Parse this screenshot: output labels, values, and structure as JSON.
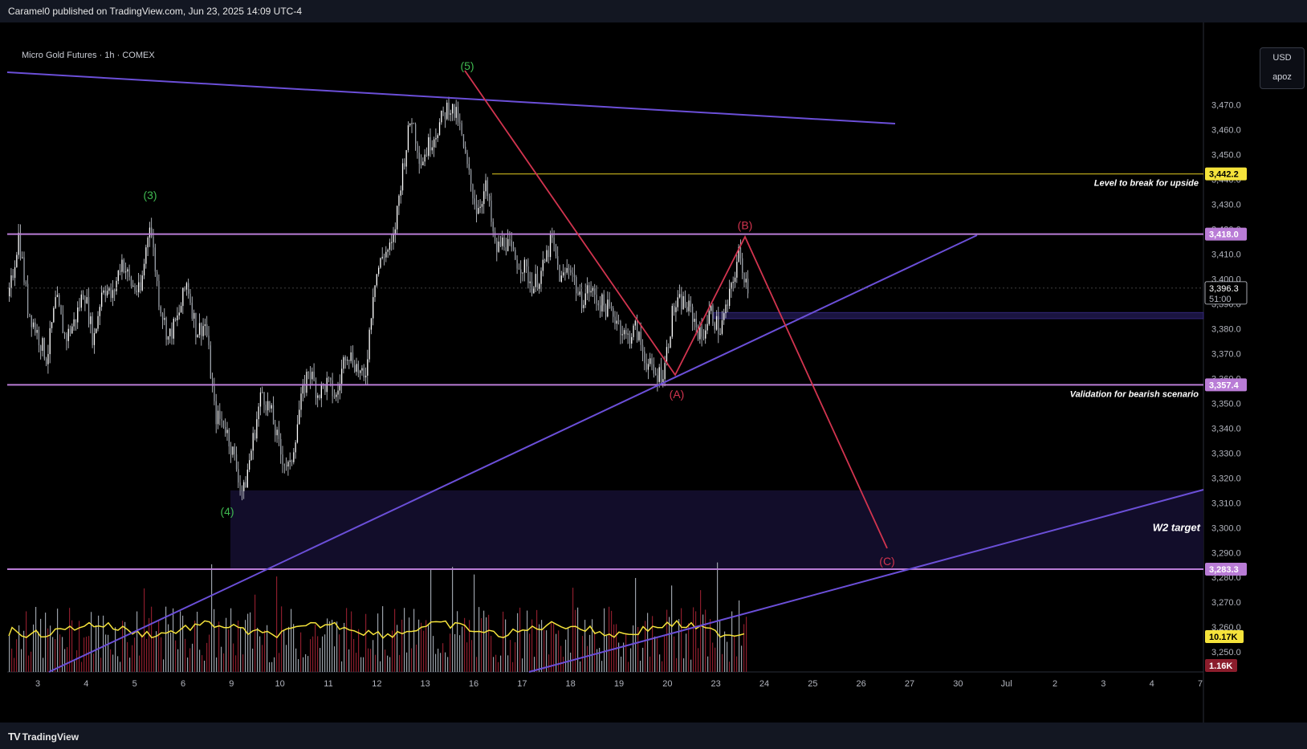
{
  "header": {
    "published": "Caramel0 published on TradingView.com, Jun 23, 2025 14:09 UTC-4"
  },
  "symbol_label": "Micro Gold Futures · 1h · COMEX",
  "currency": "USD",
  "scale_mode": "apoz",
  "footer": {
    "logo_mark": "TV",
    "logo_text": "TradingView"
  },
  "colors": {
    "background": "#000000",
    "level_line": "#b97cd6",
    "trendline": "#6b4fd8",
    "abc_path": "#d2344f",
    "wave_label_green": "#3fb950",
    "yellow_level": "#b5a31b",
    "zone_fill": "#120d2a",
    "volume_ma": "#f5e33b"
  },
  "chart_data": {
    "type": "candlestick",
    "y_axis": {
      "range": [
        3242,
        3485
      ],
      "ticks": [
        3250,
        3260,
        3270,
        3280,
        3290,
        3300,
        3310,
        3320,
        3330,
        3340,
        3350,
        3360,
        3370,
        3380,
        3390,
        3400,
        3410,
        3420,
        3430,
        3440,
        3450,
        3460,
        3470
      ],
      "tick_labels": [
        "3,250.0",
        "3,260.0",
        "3,270.0",
        "3,280.0",
        "3,290.0",
        "3,300.0",
        "3,310.0",
        "3,320.0",
        "3,330.0",
        "3,340.0",
        "3,350.0",
        "3,360.0",
        "3,370.0",
        "3,380.0",
        "3,390.0",
        "3,400.0",
        "3,410.0",
        "3,420.0",
        "3,430.0",
        "3,440.0",
        "3,450.0",
        "3,460.0",
        "3,470.0"
      ]
    },
    "x_axis": {
      "ticks": [
        "3",
        "4",
        "5",
        "6",
        "9",
        "10",
        "11",
        "12",
        "13",
        "16",
        "17",
        "18",
        "19",
        "20",
        "23",
        "24",
        "25",
        "26",
        "27",
        "30",
        "Jul",
        "2",
        "3",
        "4",
        "7"
      ]
    },
    "price_path": [
      3393,
      3418,
      3388,
      3378,
      3368,
      3392,
      3376,
      3383,
      3396,
      3375,
      3398,
      3392,
      3408,
      3398,
      3394,
      3424,
      3392,
      3376,
      3384,
      3399,
      3379,
      3382,
      3345,
      3342,
      3329,
      3313,
      3334,
      3355,
      3346,
      3330,
      3323,
      3347,
      3364,
      3354,
      3358,
      3352,
      3372,
      3366,
      3358,
      3399,
      3410,
      3413,
      3443,
      3466,
      3447,
      3455,
      3462,
      3470,
      3464,
      3444,
      3428,
      3437,
      3411,
      3416,
      3408,
      3405,
      3397,
      3403,
      3416,
      3399,
      3406,
      3391,
      3396,
      3391,
      3388,
      3384,
      3376,
      3380,
      3368,
      3361,
      3363,
      3388,
      3391,
      3386,
      3376,
      3387,
      3379,
      3392,
      3410,
      3397
    ],
    "current_price": "3,396.3",
    "countdown": "51:00",
    "level_labels": {
      "yellow": "3,442.2",
      "resistance": "3,418.0",
      "support": "3,357.4",
      "target": "3,283.3"
    },
    "volume_labels": {
      "ma": "10.17K",
      "last": "1.16K"
    },
    "horizontal_levels": [
      {
        "price": 3418.0,
        "label": "3,418.0"
      },
      {
        "price": 3357.4,
        "label": "3,357.4"
      },
      {
        "price": 3283.3,
        "label": "3,283.3"
      }
    ],
    "yellow_level": {
      "price": 3442.2,
      "label": "3,442.2",
      "text": "Level to break for upside"
    },
    "annotations": {
      "support_text": "Validation for bearish scenario",
      "target_text": "W2 target"
    },
    "wave_labels": [
      {
        "text": "(3)",
        "price": 3432
      },
      {
        "text": "(4)",
        "price": 3305
      },
      {
        "text": "(5)",
        "price": 3484
      },
      {
        "text": "(A)",
        "price": 3352
      },
      {
        "text": "(B)",
        "price": 3420
      },
      {
        "text": "(C)",
        "price": 3285
      }
    ]
  }
}
